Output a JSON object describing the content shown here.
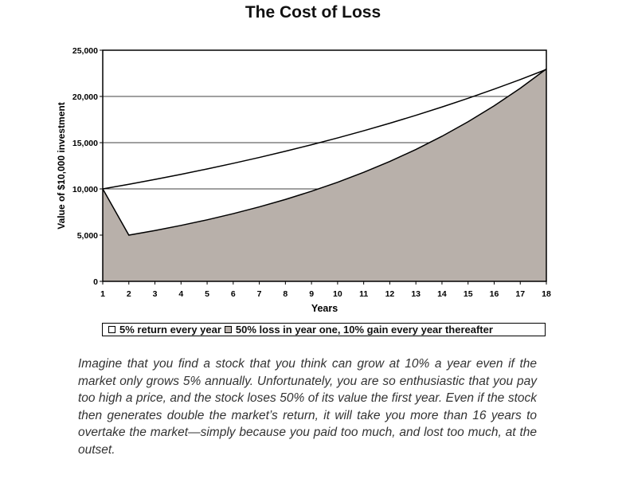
{
  "chart_data": {
    "type": "area",
    "title": "The Cost of Loss",
    "xlabel": "Years",
    "ylabel": "Value of $10,000 investment",
    "x": [
      1,
      2,
      3,
      4,
      5,
      6,
      7,
      8,
      9,
      10,
      11,
      12,
      13,
      14,
      15,
      16,
      17,
      18
    ],
    "xlim": [
      1,
      18
    ],
    "ylim": [
      0,
      25000
    ],
    "y_ticks": [
      "0",
      "5,000",
      "10,000",
      "15,000",
      "20,000",
      "25,000"
    ],
    "grid": "horizontal",
    "series": [
      {
        "name": "5% return every year",
        "style": "line",
        "color": "#000000",
        "values": [
          10000,
          10500,
          11025,
          11576,
          12155,
          12763,
          13401,
          14071,
          14775,
          15513,
          16289,
          17103,
          17959,
          18856,
          19799,
          20789,
          21829,
          22920
        ]
      },
      {
        "name": "50% loss in year one, 10% gain every year thereafter",
        "style": "area",
        "color": "#b8b0aa",
        "values": [
          10000,
          5000,
          5500,
          6050,
          6655,
          7321,
          8053,
          8858,
          9744,
          10718,
          11790,
          12969,
          14266,
          15692,
          17261,
          18987,
          20886,
          22975
        ]
      }
    ],
    "legend": "bottom"
  },
  "caption": "Imagine that you find a stock that you think can grow at 10% a year even if the market only grows 5% annually. Unfortunately, you are so enthusiastic that you pay too high a price, and the stock loses 50% of its value the first year. Even if the stock then generates double the market’s return, it will take you more than 16 years to overtake the market—simply because you paid too much, and lost too much, at the outset."
}
